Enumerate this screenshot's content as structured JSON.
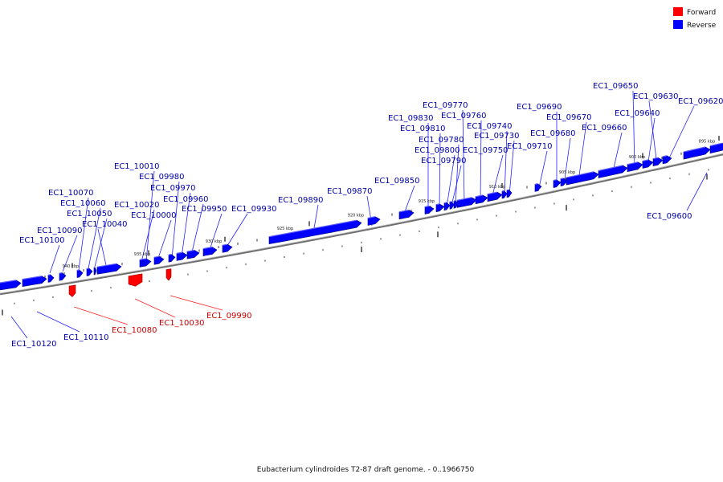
{
  "caption": "Eubacterium cylindroides T2-87 draft genome. - 0..1966750",
  "legend": [
    {
      "label": "Forward",
      "color": "#ff0000"
    },
    {
      "label": "Reverse",
      "color": "#0000ff"
    }
  ],
  "colors": {
    "forward": "#ff0000",
    "reverse": "#0000ff",
    "backbone": "#888888"
  },
  "genome": {
    "name": "Eubacterium cylindroides T2-87",
    "start": 0,
    "end": 1966750
  },
  "kbp_labels": [
    "940 kbp",
    "935 kbp",
    "930 kbp",
    "925 kbp",
    "920 kbp",
    "915 kbp",
    "910 kbp",
    "905 kbp",
    "900 kbp",
    "895 kbp"
  ],
  "genes": [
    {
      "id": "EC1_10120",
      "strand": "reverse"
    },
    {
      "id": "EC1_10110",
      "strand": "reverse"
    },
    {
      "id": "EC1_10100",
      "strand": "reverse"
    },
    {
      "id": "EC1_10090",
      "strand": "reverse"
    },
    {
      "id": "EC1_10080",
      "strand": "forward"
    },
    {
      "id": "EC1_10070",
      "strand": "reverse"
    },
    {
      "id": "EC1_10060",
      "strand": "reverse"
    },
    {
      "id": "EC1_10050",
      "strand": "reverse"
    },
    {
      "id": "EC1_10040",
      "strand": "reverse"
    },
    {
      "id": "EC1_10030",
      "strand": "forward"
    },
    {
      "id": "EC1_10020",
      "strand": "reverse"
    },
    {
      "id": "EC1_10010",
      "strand": "reverse"
    },
    {
      "id": "EC1_10000",
      "strand": "reverse"
    },
    {
      "id": "EC1_09990",
      "strand": "forward"
    },
    {
      "id": "EC1_09980",
      "strand": "reverse"
    },
    {
      "id": "EC1_09970",
      "strand": "reverse"
    },
    {
      "id": "EC1_09960",
      "strand": "reverse"
    },
    {
      "id": "EC1_09950",
      "strand": "reverse"
    },
    {
      "id": "EC1_09930",
      "strand": "reverse"
    },
    {
      "id": "EC1_09890",
      "strand": "reverse"
    },
    {
      "id": "EC1_09870",
      "strand": "reverse"
    },
    {
      "id": "EC1_09850",
      "strand": "reverse"
    },
    {
      "id": "EC1_09830",
      "strand": "reverse"
    },
    {
      "id": "EC1_09810",
      "strand": "reverse"
    },
    {
      "id": "EC1_09800",
      "strand": "reverse"
    },
    {
      "id": "EC1_09790",
      "strand": "reverse"
    },
    {
      "id": "EC1_09780",
      "strand": "reverse"
    },
    {
      "id": "EC1_09770",
      "strand": "reverse"
    },
    {
      "id": "EC1_09760",
      "strand": "reverse"
    },
    {
      "id": "EC1_09750",
      "strand": "reverse"
    },
    {
      "id": "EC1_09740",
      "strand": "reverse"
    },
    {
      "id": "EC1_09730",
      "strand": "reverse"
    },
    {
      "id": "EC1_09710",
      "strand": "reverse"
    },
    {
      "id": "EC1_09690",
      "strand": "reverse"
    },
    {
      "id": "EC1_09680",
      "strand": "reverse"
    },
    {
      "id": "EC1_09670",
      "strand": "reverse"
    },
    {
      "id": "EC1_09660",
      "strand": "reverse"
    },
    {
      "id": "EC1_09650",
      "strand": "reverse"
    },
    {
      "id": "EC1_09640",
      "strand": "reverse"
    },
    {
      "id": "EC1_09630",
      "strand": "reverse"
    },
    {
      "id": "EC1_09620",
      "strand": "reverse"
    },
    {
      "id": "EC1_09600",
      "strand": "reverse"
    }
  ]
}
